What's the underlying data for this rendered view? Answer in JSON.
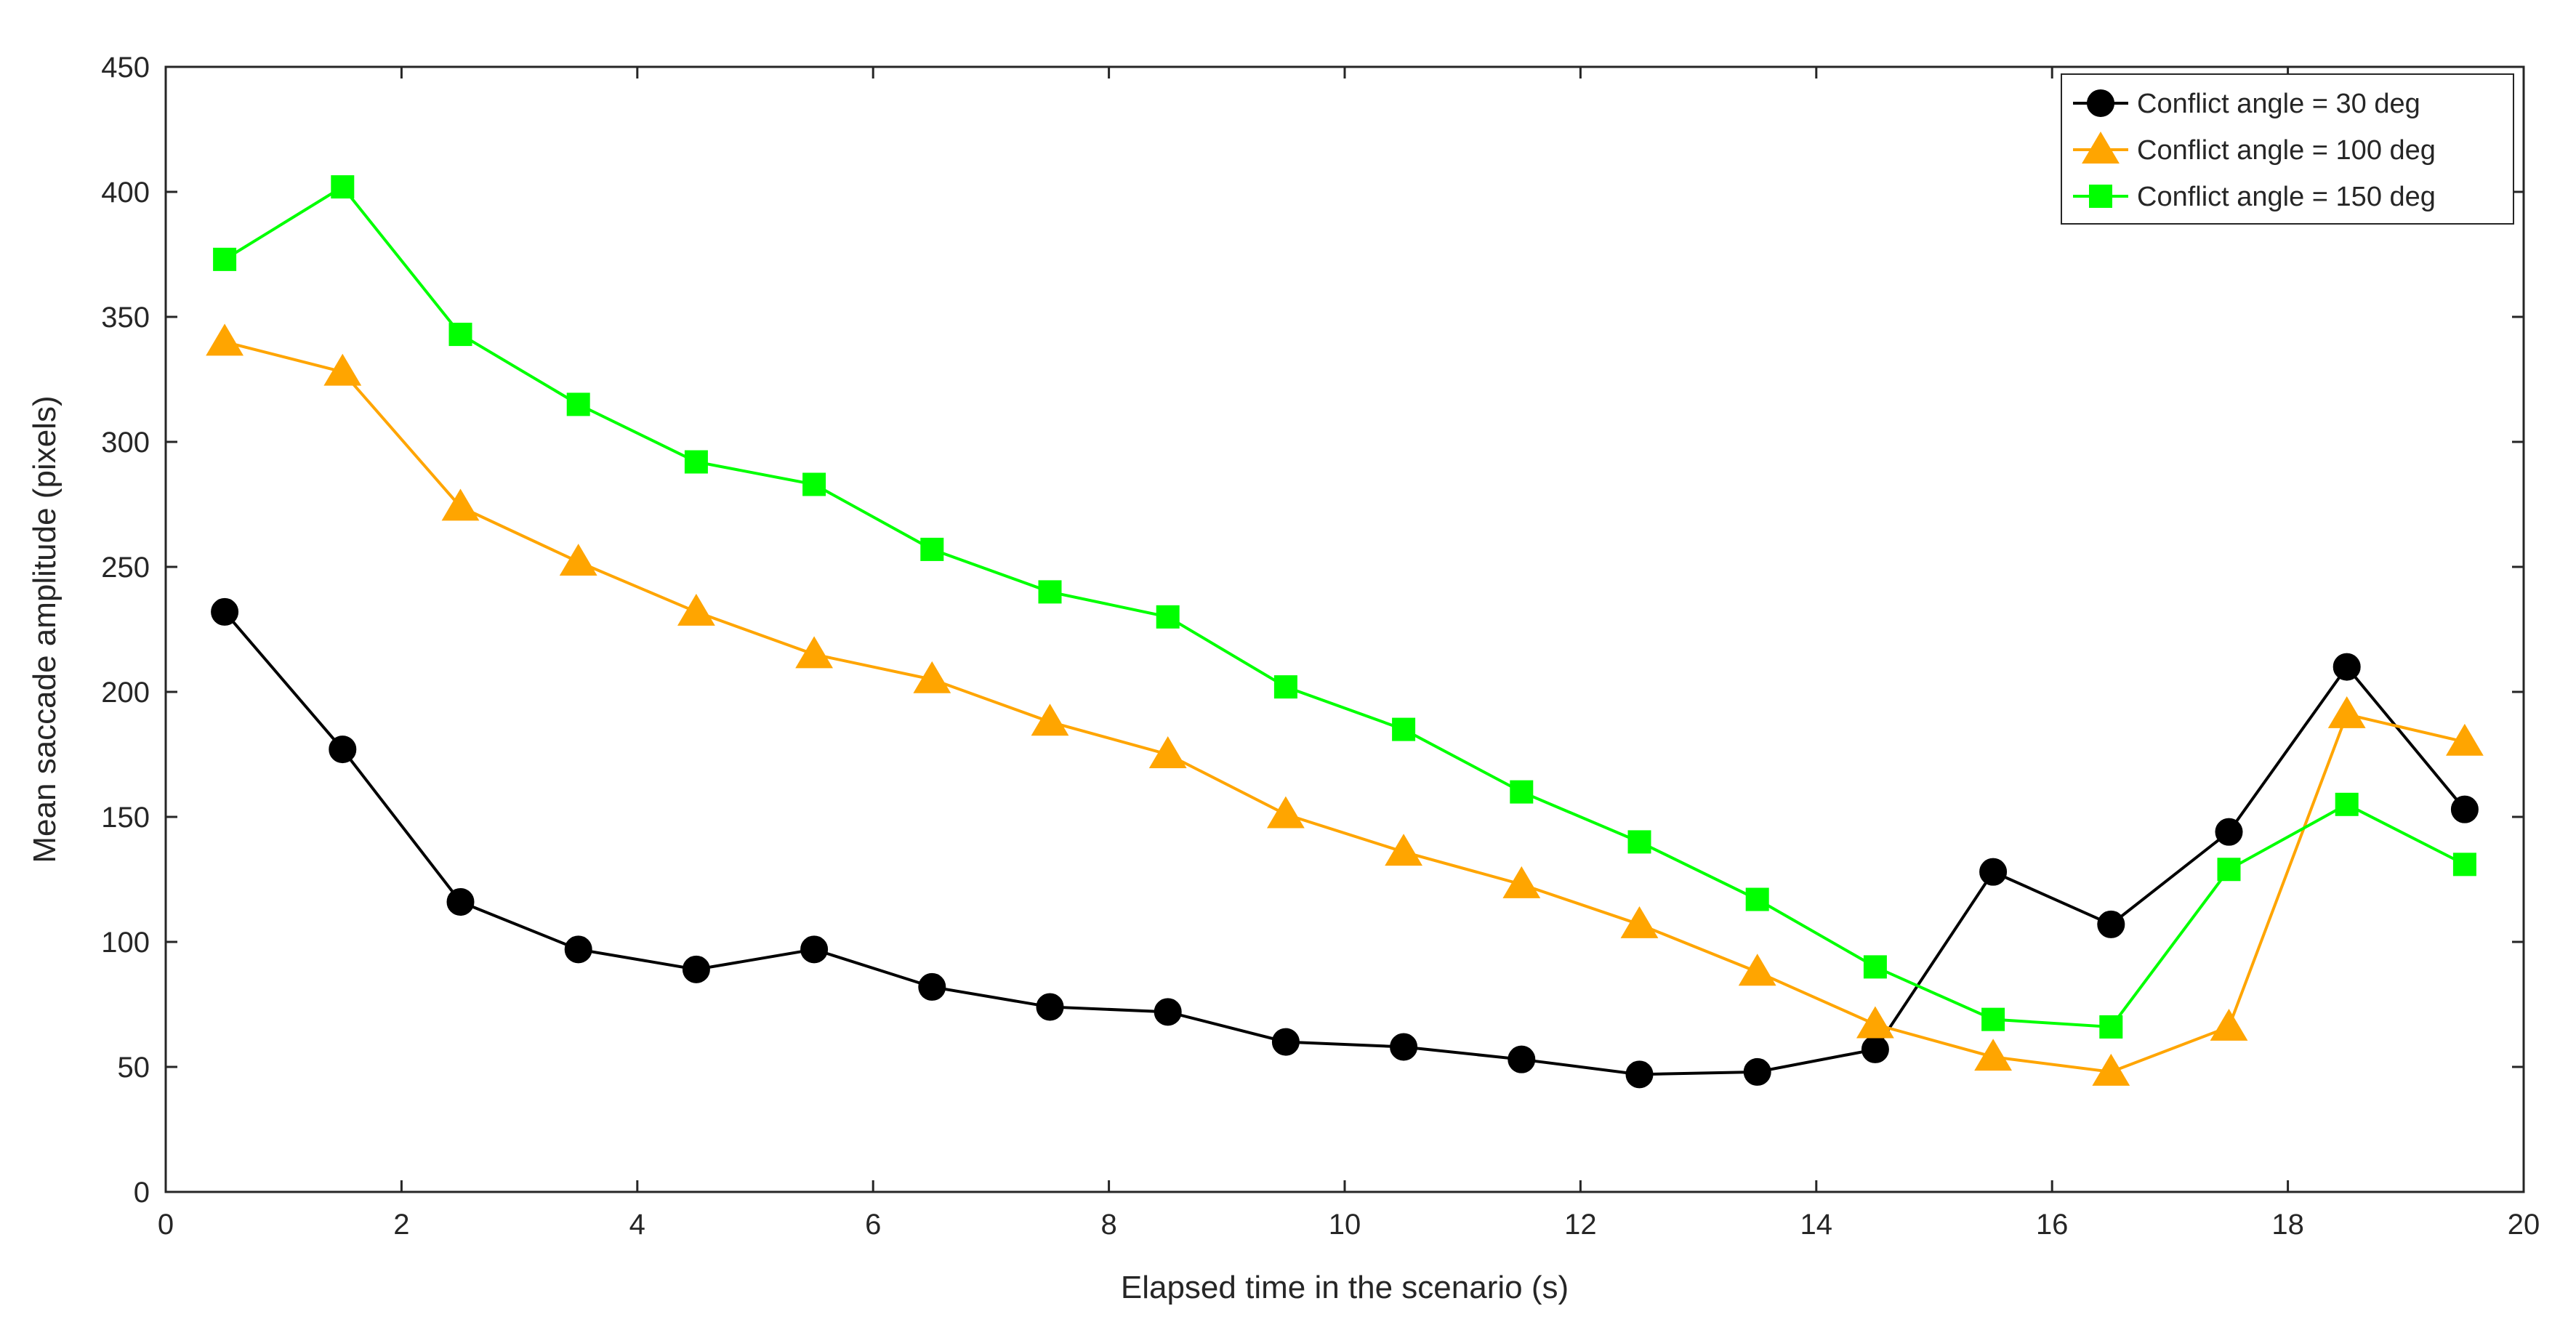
{
  "chart_data": {
    "type": "line",
    "title": "",
    "xlabel": "Elapsed time in the scenario (s)",
    "ylabel": "Mean saccade amplitude (pixels)",
    "xlim": [
      0,
      20
    ],
    "ylim": [
      0,
      450
    ],
    "x_ticks": [
      0,
      2,
      4,
      6,
      8,
      10,
      12,
      14,
      16,
      18,
      20
    ],
    "y_ticks": [
      0,
      50,
      100,
      150,
      200,
      250,
      300,
      350,
      400,
      450
    ],
    "grid": false,
    "box": true,
    "legend_position": "top-right",
    "x": [
      0.5,
      1.5,
      2.5,
      3.5,
      4.5,
      5.5,
      6.5,
      7.5,
      8.5,
      9.5,
      10.5,
      11.5,
      12.5,
      13.5,
      14.5,
      15.5,
      16.5,
      17.5,
      18.5,
      19.5
    ],
    "series": [
      {
        "name": "Conflict angle = 30 deg",
        "color": "#000000",
        "marker": "circle",
        "values": [
          232,
          177,
          116,
          97,
          89,
          97,
          82,
          74,
          72,
          60,
          58,
          53,
          47,
          48,
          57,
          128,
          107,
          144,
          210,
          153
        ]
      },
      {
        "name": "Conflict angle = 100 deg",
        "color": "#FFA500",
        "marker": "triangle",
        "values": [
          340,
          328,
          274,
          252,
          232,
          215,
          205,
          188,
          175,
          151,
          136,
          123,
          107,
          88,
          67,
          54,
          48,
          66,
          191,
          180
        ]
      },
      {
        "name": "Conflict angle = 150 deg",
        "color": "#00FF00",
        "marker": "square",
        "values": [
          373,
          402,
          343,
          315,
          292,
          283,
          257,
          240,
          230,
          202,
          185,
          160,
          140,
          117,
          90,
          69,
          66,
          129,
          155,
          131
        ]
      }
    ]
  }
}
